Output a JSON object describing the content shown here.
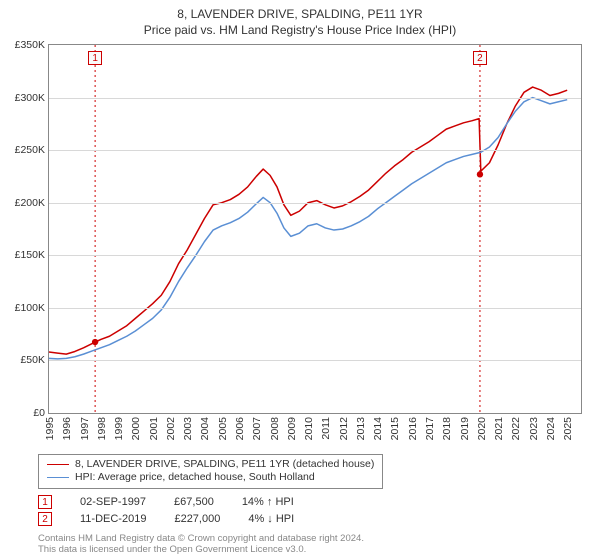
{
  "title_line1": "8, LAVENDER DRIVE, SPALDING, PE11 1YR",
  "title_line2": "Price paid vs. HM Land Registry's House Price Index (HPI)",
  "chart": {
    "type": "line",
    "x_years": [
      1995,
      1996,
      1997,
      1998,
      1999,
      2000,
      2001,
      2002,
      2003,
      2004,
      2005,
      2006,
      2007,
      2008,
      2009,
      2010,
      2011,
      2012,
      2013,
      2014,
      2015,
      2016,
      2017,
      2018,
      2019,
      2020,
      2021,
      2022,
      2023,
      2024,
      2025
    ],
    "xlim": [
      1995,
      2025.8
    ],
    "ylim": [
      0,
      350000
    ],
    "ytick_step": 50000,
    "ytick_labels": [
      "£0",
      "£50K",
      "£100K",
      "£150K",
      "£200K",
      "£250K",
      "£300K",
      "£350K"
    ],
    "grid_color": "#d8d8d8",
    "axis_color": "#888888",
    "background_color": "#ffffff",
    "series": [
      {
        "name": "price_paid",
        "label": "8, LAVENDER DRIVE, SPALDING, PE11 1YR (detached house)",
        "color": "#cc0000",
        "stroke_width": 1.5,
        "points": [
          [
            1995.0,
            58000
          ],
          [
            1995.5,
            57000
          ],
          [
            1996.0,
            56000
          ],
          [
            1996.5,
            58500
          ],
          [
            1997.0,
            62000
          ],
          [
            1997.5,
            66000
          ],
          [
            1998.0,
            70000
          ],
          [
            1998.5,
            73000
          ],
          [
            1999.0,
            78000
          ],
          [
            1999.5,
            83000
          ],
          [
            2000.0,
            90000
          ],
          [
            2000.5,
            97000
          ],
          [
            2001.0,
            104000
          ],
          [
            2001.5,
            112000
          ],
          [
            2002.0,
            125000
          ],
          [
            2002.5,
            142000
          ],
          [
            2003.0,
            155000
          ],
          [
            2003.5,
            170000
          ],
          [
            2004.0,
            185000
          ],
          [
            2004.5,
            198000
          ],
          [
            2005.0,
            200000
          ],
          [
            2005.5,
            203000
          ],
          [
            2006.0,
            208000
          ],
          [
            2006.5,
            215000
          ],
          [
            2007.0,
            225000
          ],
          [
            2007.4,
            232000
          ],
          [
            2007.8,
            226000
          ],
          [
            2008.2,
            215000
          ],
          [
            2008.6,
            198000
          ],
          [
            2009.0,
            188000
          ],
          [
            2009.5,
            192000
          ],
          [
            2010.0,
            200000
          ],
          [
            2010.5,
            202000
          ],
          [
            2011.0,
            198000
          ],
          [
            2011.5,
            195000
          ],
          [
            2012.0,
            197000
          ],
          [
            2012.5,
            201000
          ],
          [
            2013.0,
            206000
          ],
          [
            2013.5,
            212000
          ],
          [
            2014.0,
            220000
          ],
          [
            2014.5,
            228000
          ],
          [
            2015.0,
            235000
          ],
          [
            2015.5,
            241000
          ],
          [
            2016.0,
            248000
          ],
          [
            2016.5,
            253000
          ],
          [
            2017.0,
            258000
          ],
          [
            2017.5,
            264000
          ],
          [
            2018.0,
            270000
          ],
          [
            2018.5,
            273000
          ],
          [
            2019.0,
            276000
          ],
          [
            2019.5,
            278000
          ],
          [
            2019.9,
            280000
          ],
          [
            2020.0,
            230000
          ],
          [
            2020.5,
            238000
          ],
          [
            2021.0,
            255000
          ],
          [
            2021.5,
            275000
          ],
          [
            2022.0,
            292000
          ],
          [
            2022.5,
            305000
          ],
          [
            2023.0,
            310000
          ],
          [
            2023.5,
            307000
          ],
          [
            2024.0,
            302000
          ],
          [
            2024.5,
            304000
          ],
          [
            2025.0,
            307000
          ]
        ]
      },
      {
        "name": "hpi",
        "label": "HPI: Average price, detached house, South Holland",
        "color": "#5a8fd4",
        "stroke_width": 1.5,
        "points": [
          [
            1995.0,
            52000
          ],
          [
            1995.5,
            51500
          ],
          [
            1996.0,
            52000
          ],
          [
            1996.5,
            53500
          ],
          [
            1997.0,
            56000
          ],
          [
            1997.5,
            59000
          ],
          [
            1998.0,
            62000
          ],
          [
            1998.5,
            65000
          ],
          [
            1999.0,
            69000
          ],
          [
            1999.5,
            73000
          ],
          [
            2000.0,
            78000
          ],
          [
            2000.5,
            84000
          ],
          [
            2001.0,
            90000
          ],
          [
            2001.5,
            98000
          ],
          [
            2002.0,
            110000
          ],
          [
            2002.5,
            125000
          ],
          [
            2003.0,
            138000
          ],
          [
            2003.5,
            150000
          ],
          [
            2004.0,
            163000
          ],
          [
            2004.5,
            174000
          ],
          [
            2005.0,
            178000
          ],
          [
            2005.5,
            181000
          ],
          [
            2006.0,
            185000
          ],
          [
            2006.5,
            191000
          ],
          [
            2007.0,
            199000
          ],
          [
            2007.4,
            205000
          ],
          [
            2007.8,
            200000
          ],
          [
            2008.2,
            190000
          ],
          [
            2008.6,
            176000
          ],
          [
            2009.0,
            168000
          ],
          [
            2009.5,
            171000
          ],
          [
            2010.0,
            178000
          ],
          [
            2010.5,
            180000
          ],
          [
            2011.0,
            176000
          ],
          [
            2011.5,
            174000
          ],
          [
            2012.0,
            175000
          ],
          [
            2012.5,
            178000
          ],
          [
            2013.0,
            182000
          ],
          [
            2013.5,
            187000
          ],
          [
            2014.0,
            194000
          ],
          [
            2014.5,
            200000
          ],
          [
            2015.0,
            206000
          ],
          [
            2015.5,
            212000
          ],
          [
            2016.0,
            218000
          ],
          [
            2016.5,
            223000
          ],
          [
            2017.0,
            228000
          ],
          [
            2017.5,
            233000
          ],
          [
            2018.0,
            238000
          ],
          [
            2018.5,
            241000
          ],
          [
            2019.0,
            244000
          ],
          [
            2019.5,
            246000
          ],
          [
            2020.0,
            248000
          ],
          [
            2020.5,
            253000
          ],
          [
            2021.0,
            262000
          ],
          [
            2021.5,
            275000
          ],
          [
            2022.0,
            287000
          ],
          [
            2022.5,
            296000
          ],
          [
            2023.0,
            300000
          ],
          [
            2023.5,
            297000
          ],
          [
            2024.0,
            294000
          ],
          [
            2024.5,
            296000
          ],
          [
            2025.0,
            298000
          ]
        ]
      }
    ],
    "markers": [
      {
        "n": "1",
        "x": 1997.67,
        "y": 67500,
        "color": "#cc0000"
      },
      {
        "n": "2",
        "x": 2019.95,
        "y": 227000,
        "color": "#cc0000"
      }
    ]
  },
  "legend": {
    "items": [
      {
        "color": "#cc0000",
        "label": "8, LAVENDER DRIVE, SPALDING, PE11 1YR (detached house)"
      },
      {
        "color": "#5a8fd4",
        "label": "HPI: Average price, detached house, South Holland"
      }
    ]
  },
  "events": [
    {
      "n": "1",
      "color": "#cc0000",
      "date": "02-SEP-1997",
      "price": "£67,500",
      "delta": "14% ↑ HPI"
    },
    {
      "n": "2",
      "color": "#cc0000",
      "date": "11-DEC-2019",
      "price": "£227,000",
      "delta": "4% ↓ HPI"
    }
  ],
  "footnote_line1": "Contains HM Land Registry data © Crown copyright and database right 2024.",
  "footnote_line2": "This data is licensed under the Open Government Licence v3.0."
}
